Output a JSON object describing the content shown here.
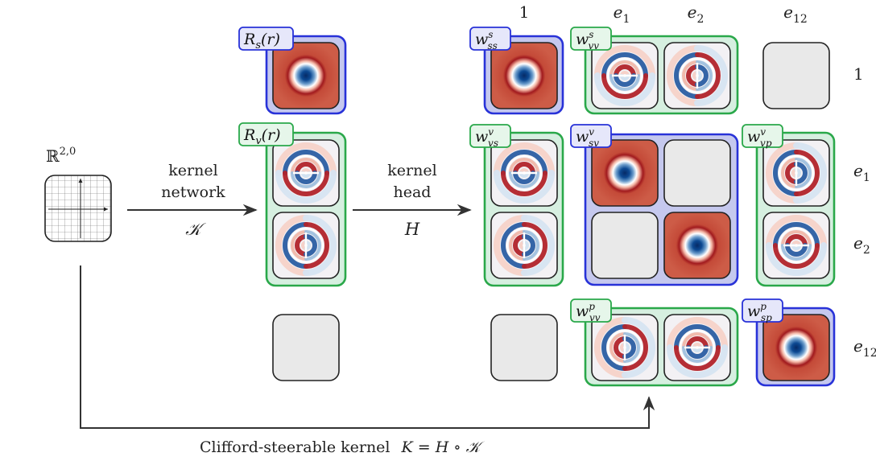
{
  "input_space": {
    "label": "ℝ",
    "superscript": "2,0"
  },
  "arrow_kernel_network": {
    "line1": "kernel",
    "line2": "network",
    "symbol": "𝒦"
  },
  "arrow_kernel_head": {
    "line1": "kernel",
    "line2": "head",
    "symbol": "H"
  },
  "bottom_caption": {
    "text": "Clifford-steerable kernel",
    "formula": "K = H ∘ 𝒦"
  },
  "column_headers": [
    {
      "base": "1",
      "sub": ""
    },
    {
      "base": "e",
      "sub": "1"
    },
    {
      "base": "e",
      "sub": "2"
    },
    {
      "base": "e",
      "sub": "12"
    }
  ],
  "row_headers": [
    {
      "base": "1",
      "sub": ""
    },
    {
      "base": "e",
      "sub": "1"
    },
    {
      "base": "e",
      "sub": "2"
    },
    {
      "base": "e",
      "sub": "12"
    }
  ],
  "radial_labels": {
    "scalar": {
      "base": "R",
      "sub": "s",
      "arg": "(r)"
    },
    "vector": {
      "base": "R",
      "sub": "v",
      "arg": "(r)"
    }
  },
  "weight_labels": {
    "w_ss_s": {
      "base": "w",
      "sup": "s",
      "sub": "ss"
    },
    "w_vv_s": {
      "base": "w",
      "sup": "s",
      "sub": "vv"
    },
    "w_vs_v": {
      "base": "w",
      "sup": "v",
      "sub": "vs"
    },
    "w_sv_v": {
      "base": "w",
      "sup": "v",
      "sub": "sv"
    },
    "w_vp_v": {
      "base": "w",
      "sup": "v",
      "sub": "vp"
    },
    "w_vv_p": {
      "base": "w",
      "sup": "p",
      "sub": "vv"
    },
    "w_sp_p": {
      "base": "w",
      "sup": "p",
      "sub": "sp"
    }
  },
  "colors": {
    "blue_group_fill": "#c5c8ee",
    "blue_group_stroke": "#2832d8",
    "green_group_fill": "#d6efe0",
    "green_group_stroke": "#2aa84a",
    "empty_tile_fill": "#e9e9e9",
    "radial_red": "#cc5a45",
    "radial_blue": "#0c3f86"
  }
}
